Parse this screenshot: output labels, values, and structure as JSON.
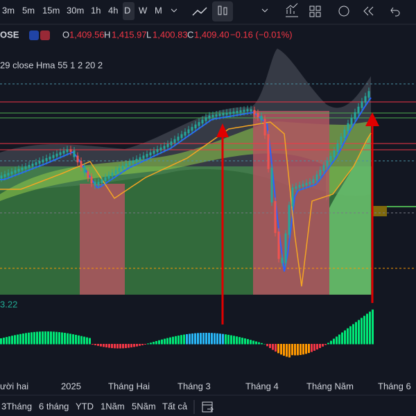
{
  "toolbar": {
    "intervals": [
      "3m",
      "5m",
      "15m",
      "30m",
      "1h",
      "4h",
      "D",
      "W",
      "M"
    ],
    "active": "D"
  },
  "legend": {
    "symbol": "OSE",
    "o_label": "O",
    "open": "1,409.56",
    "h_label": "H",
    "high": "1,415.97",
    "l_label": "L",
    "low": "1,400.83",
    "c_label": "C",
    "close": "1,409.40",
    "change": "−0.16 (−0.01%)"
  },
  "indicator": {
    "label": "29 close Hma 55 1 2 20 2"
  },
  "oscillator": {
    "value": "3.22"
  },
  "x_axis": {
    "labels": [
      "ười hai",
      "2025",
      "Tháng Hai",
      "Tháng 3",
      "Tháng 4",
      "Tháng Năm",
      "Tháng 6"
    ]
  },
  "ranges": [
    "3Tháng",
    "6 tháng",
    "YTD",
    "1Năm",
    "5Năm",
    "Tất cả"
  ]
}
